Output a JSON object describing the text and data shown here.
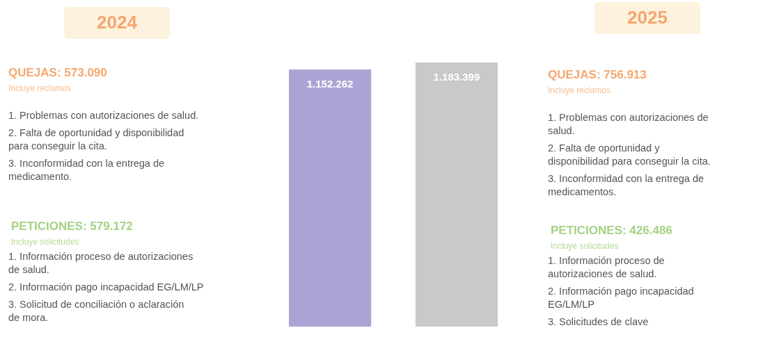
{
  "chart_data": {
    "type": "bar",
    "categories": [
      "2024",
      "2025"
    ],
    "values": [
      1152262,
      1183399
    ],
    "value_labels": [
      "1.152.262",
      "1.183.399"
    ],
    "colors": [
      "#aba3d4",
      "#c9c9c9"
    ],
    "annotations": [
      "QUEJAS:  573.090",
      "Incluye reclamos",
      "1.   Problemas con autorizaciones de salud.",
      "2.   Falta de oportunidad y disponibilidad para conseguir la cita.",
      "3.   Inconformidad con la entrega de medicamento.",
      "PETICIONES:  579.172",
      "Incluye solicitudes",
      "1.   Información proceso de autorizaciones de salud.",
      "2.   Información pago incapacidad EG/LM/LP",
      "3.   Solicitud de conciliación o aclaración de mora.",
      "QUEJAS:  756.913",
      "Incluye reclamos",
      "1.   Problemas con autorizaciones de salud.",
      "2.   Falta de oportunidad y disponibilidad para conseguir la cita.",
      "3.   Inconformidad con la entrega de medicamentos.",
      "PETICIONES:  426.486",
      "Incluye solicitudes",
      "1.   Información proceso de autorizaciones de salud.",
      "2.   Información pago incapacidad EG/LM/LP",
      "3.   Solicitudes de clave"
    ]
  }
}
